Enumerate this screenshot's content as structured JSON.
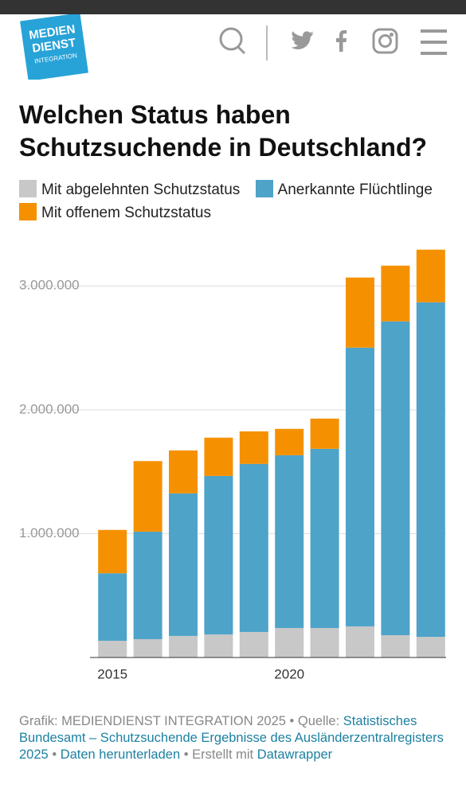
{
  "header": {
    "logo": [
      "MEDIEN",
      "DIENST",
      "INTEGRATION"
    ]
  },
  "chart_data": {
    "type": "stacked_bar",
    "title": "Welchen Status haben Schutzsuchende in Deutschland?",
    "categories": [
      "2015",
      null,
      null,
      null,
      null,
      "2020",
      null,
      null,
      null,
      null
    ],
    "series": [
      {
        "name": "Mit abgelehnten Schutzstatus",
        "color": "#c8c8c8",
        "values": [
          135000,
          148000,
          174000,
          186000,
          206000,
          238000,
          238000,
          251000,
          180000,
          167000
        ]
      },
      {
        "name": "Anerkannte Flüchtlinge",
        "color": "#4ea3c9",
        "values": [
          545000,
          868000,
          1151000,
          1280000,
          1357000,
          1395000,
          1447000,
          2251000,
          2534000,
          2701000
        ]
      },
      {
        "name": "Mit offenem Schutzstatus",
        "color": "#f59100",
        "values": [
          350000,
          570000,
          347000,
          309000,
          263000,
          213000,
          244000,
          566000,
          450000,
          425000
        ]
      }
    ],
    "ylim": [
      0,
      3400000
    ],
    "yticks": [
      {
        "value": 1000000,
        "label": "1.000.000"
      },
      {
        "value": 2000000,
        "label": "2.000.000"
      },
      {
        "value": 3000000,
        "label": "3.000.000"
      }
    ],
    "grid": true
  },
  "footer": [
    "Grafik: MEDIENDIENST INTEGRATION 2025 • Quelle:",
    "Statistisches Bundesamt – Schutzsuchende Ergebnisse des Ausländerzentralregisters 2025",
    "•",
    "Daten herunterladen",
    "• Erstellt mit",
    "Datawrapper"
  ]
}
